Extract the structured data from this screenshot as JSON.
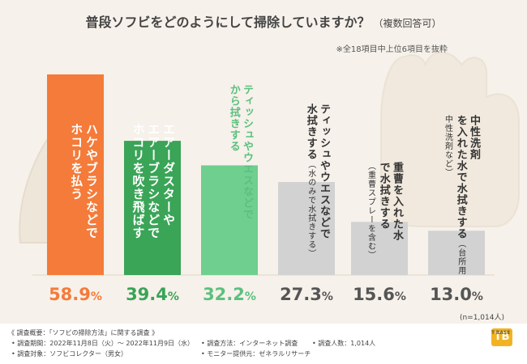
{
  "title": "普段ソフビをどのようにして掃除していますか？",
  "title_sub": "（複数回答可）",
  "note": "※全18項目中上位6項目を抜粋",
  "sample": "(n=1,014人)",
  "chart_data": {
    "type": "bar",
    "title": "普段ソフビをどのようにして掃除していますか？（複数回答可）",
    "ylim": [
      0,
      60
    ],
    "unit": "%",
    "categories": [
      "ハケやブラシなどで ホコリを払う",
      "エアーダスターや エアーブラシなどで ホコリを吹き飛ばす",
      "ティッシュやウエスなどで から拭きする",
      "ティッシュやウエスなどで 水拭きする（水のみで水拭きする）",
      "重曹を入れた水で水拭きする（重曹スプレーを含む）",
      "中性洗剤（台所用中性洗剤など）を 入れた水で水拭きする"
    ],
    "values": [
      58.9,
      39.4,
      32.2,
      27.3,
      15.6,
      13.0
    ],
    "value_labels": [
      "58.9",
      "39.4",
      "32.2",
      "27.3",
      "15.6",
      "13.0"
    ],
    "colors": [
      "#f47b3a",
      "#3aa457",
      "#6fcf8e",
      "#d2d2d2",
      "#d2d2d2",
      "#d2d2d2"
    ],
    "value_colors": [
      "#f47b3a",
      "#3aa457",
      "#5cc07e",
      "#555555",
      "#555555",
      "#555555"
    ],
    "label_colors": [
      "#ffffff",
      "#ffffff",
      "#5cc07e",
      "#333333",
      "#333333",
      "#333333"
    ]
  },
  "labels": [
    {
      "main": "ハケやブラシなどで\nホコリを払う",
      "paren": ""
    },
    {
      "main": "エアーダスターや\nエアーブラシなどで\nホコリを吹き飛ばす",
      "paren": ""
    },
    {
      "main": "ティッシュやウエスなどで\nから拭きする",
      "paren": ""
    },
    {
      "main": "ティッシュやウエスなどで\n水拭きする",
      "paren": "（水のみで水拭きする）"
    },
    {
      "main": "重曹を入れた水\nで水拭きする",
      "paren": "（重曹スプレーを含む）"
    },
    {
      "main": "中性洗剤\nを入れた水で水拭きする",
      "paren": "（台所用中性洗剤など）"
    }
  ],
  "pct_unit": "%",
  "footer": {
    "l1": "《 調査概要：「ソフビの掃除方法」に関する調査 》",
    "l2": "• 調査期間：2022年11月8日（火）～ 2022年11月9日（水）",
    "l3": "• 調査対象：ソフビコレクター（男女）",
    "l4": "• 調査方法：インターネット調査",
    "l5": "• モニター提供元：ゼネラルリサーチ",
    "l6": "• 調査人数：1,014人"
  },
  "logo": {
    "mark": "TB",
    "text": "T-BASE"
  }
}
